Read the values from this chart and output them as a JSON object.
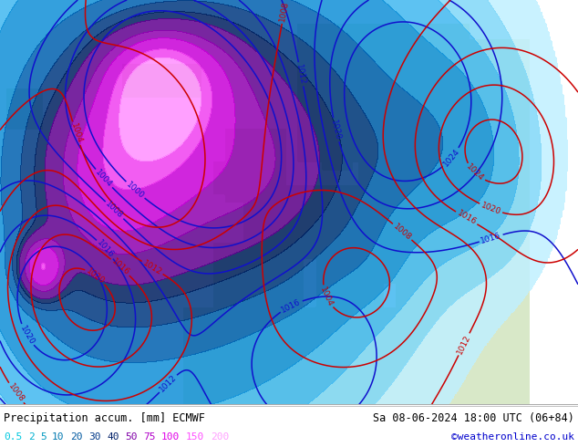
{
  "title_left": "Precipitation accum. [mm] ECMWF",
  "title_right": "Sa 08-06-2024 18:00 UTC (06+84)",
  "credit": "©weatheronline.co.uk",
  "legend_values": [
    "0.5",
    "2",
    "5",
    "10",
    "20",
    "30",
    "40",
    "50",
    "75",
    "100",
    "150",
    "200"
  ],
  "leg_colors": [
    "#00c8e0",
    "#00b0d0",
    "#0098c0",
    "#0078b0",
    "#0058a0",
    "#003888",
    "#002068",
    "#8000a8",
    "#b000c8",
    "#e000e8",
    "#ff50ff",
    "#ffa0ff"
  ],
  "precip_levels": [
    0.5,
    2,
    5,
    10,
    20,
    30,
    40,
    50,
    75,
    100,
    150,
    200,
    500
  ],
  "precip_colors": [
    "#c0f0ff",
    "#80d8f8",
    "#40b8f0",
    "#1090d8",
    "#0060b0",
    "#003880",
    "#002060",
    "#600090",
    "#9000b0",
    "#c800d8",
    "#f040f0",
    "#ff90ff"
  ],
  "isobar_blue_levels": [
    1000,
    1004,
    1008,
    1012,
    1016,
    1020,
    1024
  ],
  "isobar_red_levels": [
    1004,
    1008,
    1012,
    1016,
    1020,
    1024
  ],
  "fig_width": 6.34,
  "fig_height": 4.9,
  "dpi": 100,
  "credit_color": "#0000cc",
  "map_bg": "#b8d8f0",
  "land_color": "#d8e8c8"
}
